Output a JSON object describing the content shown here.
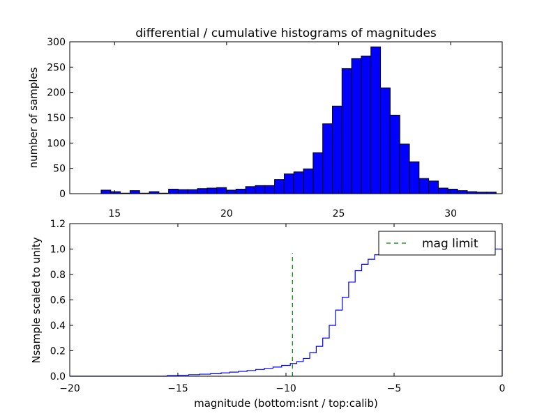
{
  "chart_data": [
    {
      "type": "bar",
      "title": "differential / cumulative histograms of magnitudes",
      "xlabel": "",
      "ylabel": "number of samples",
      "xlim": [
        13.0,
        32.3
      ],
      "ylim": [
        0,
        300
      ],
      "xticks": [
        15,
        20,
        25,
        30
      ],
      "yticks": [
        0,
        50,
        100,
        150,
        200,
        250,
        300
      ],
      "bar_color": "#0000ff",
      "bin_start": 14.4,
      "bin_width": 0.43,
      "values": [
        7,
        4,
        1,
        6,
        1,
        4,
        1,
        9,
        8,
        8,
        10,
        11,
        12,
        7,
        9,
        14,
        16,
        16,
        28,
        39,
        43,
        49,
        81,
        138,
        173,
        247,
        267,
        272,
        290,
        209,
        155,
        98,
        63,
        30,
        25,
        11,
        9,
        6,
        4,
        3,
        3
      ]
    },
    {
      "type": "line",
      "title": "",
      "xlabel": "magnitude (bottom:isnt / top:calib)",
      "ylabel": "Nsample scaled to unity",
      "xlim": [
        -20,
        0
      ],
      "ylim": [
        0.0,
        1.2
      ],
      "xticks": [
        -20,
        -15,
        -10,
        -5,
        0
      ],
      "yticks": [
        0.0,
        0.2,
        0.4,
        0.6,
        0.8,
        1.0,
        1.2
      ],
      "ytick_labels": [
        "0.0",
        "0.2",
        "0.4",
        "0.6",
        "0.8",
        "1.0",
        "1.2"
      ],
      "series": [
        {
          "color": "#0000ff",
          "style": "steps",
          "x": [
            -20,
            -15.5,
            -15.0,
            -14.5,
            -14.0,
            -13.5,
            -13.0,
            -12.6,
            -12.2,
            -11.8,
            -11.4,
            -11.0,
            -10.6,
            -10.2,
            -9.8,
            -9.5,
            -9.2,
            -8.9,
            -8.6,
            -8.3,
            -8.0,
            -7.7,
            -7.4,
            -7.1,
            -6.8,
            -6.5,
            -6.2,
            -5.9,
            -5.6,
            -5.3,
            -5.0,
            -4.7,
            -4.4,
            -4.1,
            -3.8,
            -3.5,
            -3.2,
            -2.9,
            -2.6,
            -2.3,
            -2.0,
            -1.7,
            -1.4,
            -1.1,
            -0.8,
            -0.5,
            -0.05
          ],
          "y": [
            0.0,
            0.005,
            0.008,
            0.012,
            0.016,
            0.02,
            0.026,
            0.032,
            0.038,
            0.045,
            0.053,
            0.062,
            0.072,
            0.085,
            0.1,
            0.115,
            0.14,
            0.185,
            0.235,
            0.3,
            0.4,
            0.52,
            0.62,
            0.74,
            0.83,
            0.88,
            0.92,
            0.955,
            0.97,
            0.98,
            0.985,
            0.99,
            0.993,
            0.995,
            0.996,
            0.997,
            0.998,
            0.998,
            0.999,
            0.999,
            0.999,
            1.0,
            1.0,
            1.0,
            1.0,
            1.0,
            1.0
          ]
        },
        {
          "name": "mag limit",
          "color": "#008000",
          "style": "dashed",
          "x": [
            -9.7,
            -9.7
          ],
          "y": [
            0.0,
            0.97
          ]
        }
      ],
      "legend": "top-right"
    }
  ]
}
